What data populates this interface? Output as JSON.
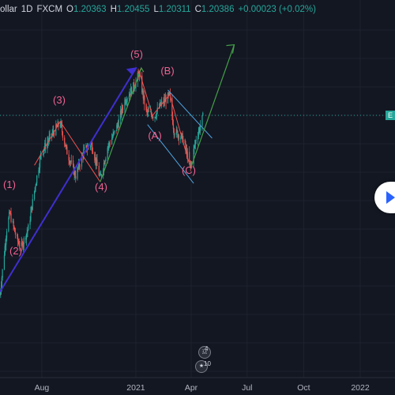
{
  "header": {
    "symbol_partial": "ollar",
    "interval": "1D",
    "exchange": "FXCM",
    "open_label": "O",
    "open": "1.20363",
    "high_label": "H",
    "high": "1.20455",
    "low_label": "L",
    "low": "1.20311",
    "close_label": "C",
    "close": "1.20386",
    "change": "+0.00023 (+0.02%)"
  },
  "price_tag_text": "E",
  "events": [
    {
      "count": "4",
      "icon": "us-flag-icon"
    },
    {
      "count": "10",
      "icon": "eu-flag-icon"
    }
  ],
  "chart_data": {
    "type": "candlestick",
    "title": "",
    "x_tick_labels": [
      "Aug",
      "2021",
      "Apr",
      "Jul",
      "Oct",
      "2022"
    ],
    "grid": true,
    "colors": {
      "up": "#26a69a",
      "down": "#ef5350",
      "background": "#131722",
      "grid": "#1e222d",
      "wave_label": "#f06292",
      "wave_up": "#43a047",
      "impulse": "#3f2fd0",
      "channel": "#4fa3e0"
    },
    "wave_labels": [
      "(1)",
      "(2)",
      "(3)",
      "(4)",
      "(5)",
      "(A)",
      "(B)",
      "(C)"
    ],
    "wave_points": [
      {
        "date": "2020-05-25",
        "price": 1.09
      },
      {
        "date": "2020-06-10",
        "price": 1.142
      },
      {
        "date": "2020-06-29",
        "price": 1.117
      },
      {
        "date": "2020-08-31",
        "price": 1.201
      },
      {
        "date": "2020-11-04",
        "price": 1.161
      },
      {
        "date": "2021-01-06",
        "price": 1.235
      },
      {
        "date": "2021-03-04",
        "price": 1.195
      },
      {
        "date": "2021-02-25",
        "price": 1.219
      },
      {
        "date": "2021-03-31",
        "price": 1.17
      }
    ],
    "price_path": [
      [
        "2020-05-25",
        1.086
      ],
      [
        "2020-06-05",
        1.13
      ],
      [
        "2020-06-10",
        1.14
      ],
      [
        "2020-06-22",
        1.122
      ],
      [
        "2020-06-29",
        1.118
      ],
      [
        "2020-07-10",
        1.13
      ],
      [
        "2020-07-22",
        1.16
      ],
      [
        "2020-07-31",
        1.18
      ],
      [
        "2020-08-18",
        1.193
      ],
      [
        "2020-08-31",
        1.2
      ],
      [
        "2020-09-10",
        1.182
      ],
      [
        "2020-09-25",
        1.165
      ],
      [
        "2020-10-09",
        1.182
      ],
      [
        "2020-10-21",
        1.186
      ],
      [
        "2020-11-04",
        1.163
      ],
      [
        "2020-11-16",
        1.184
      ],
      [
        "2020-11-30",
        1.196
      ],
      [
        "2020-12-14",
        1.215
      ],
      [
        "2020-12-31",
        1.226
      ],
      [
        "2021-01-06",
        1.233
      ],
      [
        "2021-01-18",
        1.207
      ],
      [
        "2021-02-01",
        1.205
      ],
      [
        "2021-02-10",
        1.212
      ],
      [
        "2021-02-25",
        1.218
      ],
      [
        "2021-03-04",
        1.195
      ],
      [
        "2021-03-18",
        1.19
      ],
      [
        "2021-03-31",
        1.171
      ],
      [
        "2021-04-09",
        1.19
      ],
      [
        "2021-04-15",
        1.197
      ],
      [
        "2021-04-20",
        1.204
      ]
    ],
    "projection": {
      "from": [
        "2021-03-31",
        1.17
      ],
      "to": [
        "2021-06-10",
        1.252
      ]
    }
  }
}
